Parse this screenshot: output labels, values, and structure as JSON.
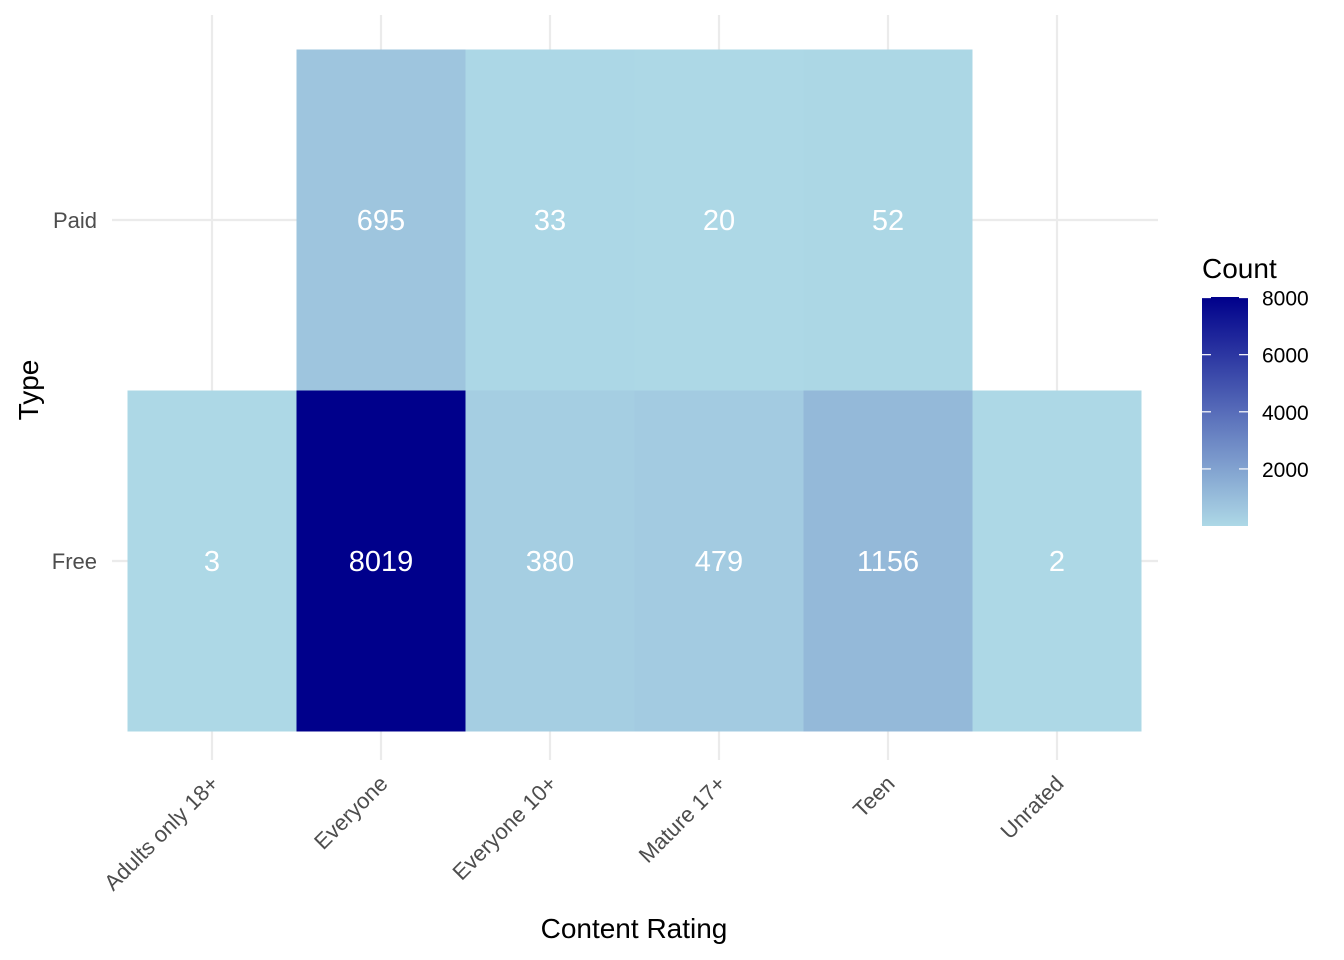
{
  "chart_data": {
    "type": "heatmap",
    "title": "",
    "xlabel": "Content Rating",
    "ylabel": "Type",
    "x_categories": [
      "Adults only 18+",
      "Everyone",
      "Everyone 10+",
      "Mature 17+",
      "Teen",
      "Unrated"
    ],
    "y_categories": [
      "Free",
      "Paid"
    ],
    "cells": [
      {
        "x": "Adults only 18+",
        "y": "Free",
        "value": 3
      },
      {
        "x": "Everyone",
        "y": "Free",
        "value": 8019
      },
      {
        "x": "Everyone 10+",
        "y": "Free",
        "value": 380
      },
      {
        "x": "Mature 17+",
        "y": "Free",
        "value": 479
      },
      {
        "x": "Teen",
        "y": "Free",
        "value": 1156
      },
      {
        "x": "Unrated",
        "y": "Free",
        "value": 2
      },
      {
        "x": "Everyone",
        "y": "Paid",
        "value": 695
      },
      {
        "x": "Everyone 10+",
        "y": "Paid",
        "value": 33
      },
      {
        "x": "Mature 17+",
        "y": "Paid",
        "value": 20
      },
      {
        "x": "Teen",
        "y": "Paid",
        "value": 52
      }
    ],
    "legend": {
      "title": "Count",
      "position": "right",
      "breaks": [
        2000,
        4000,
        6000,
        8000
      ],
      "range": [
        2,
        8019
      ],
      "low_color": "#add8e6",
      "high_color": "#00008b"
    },
    "grid": true,
    "label_color": "#ffffff"
  }
}
